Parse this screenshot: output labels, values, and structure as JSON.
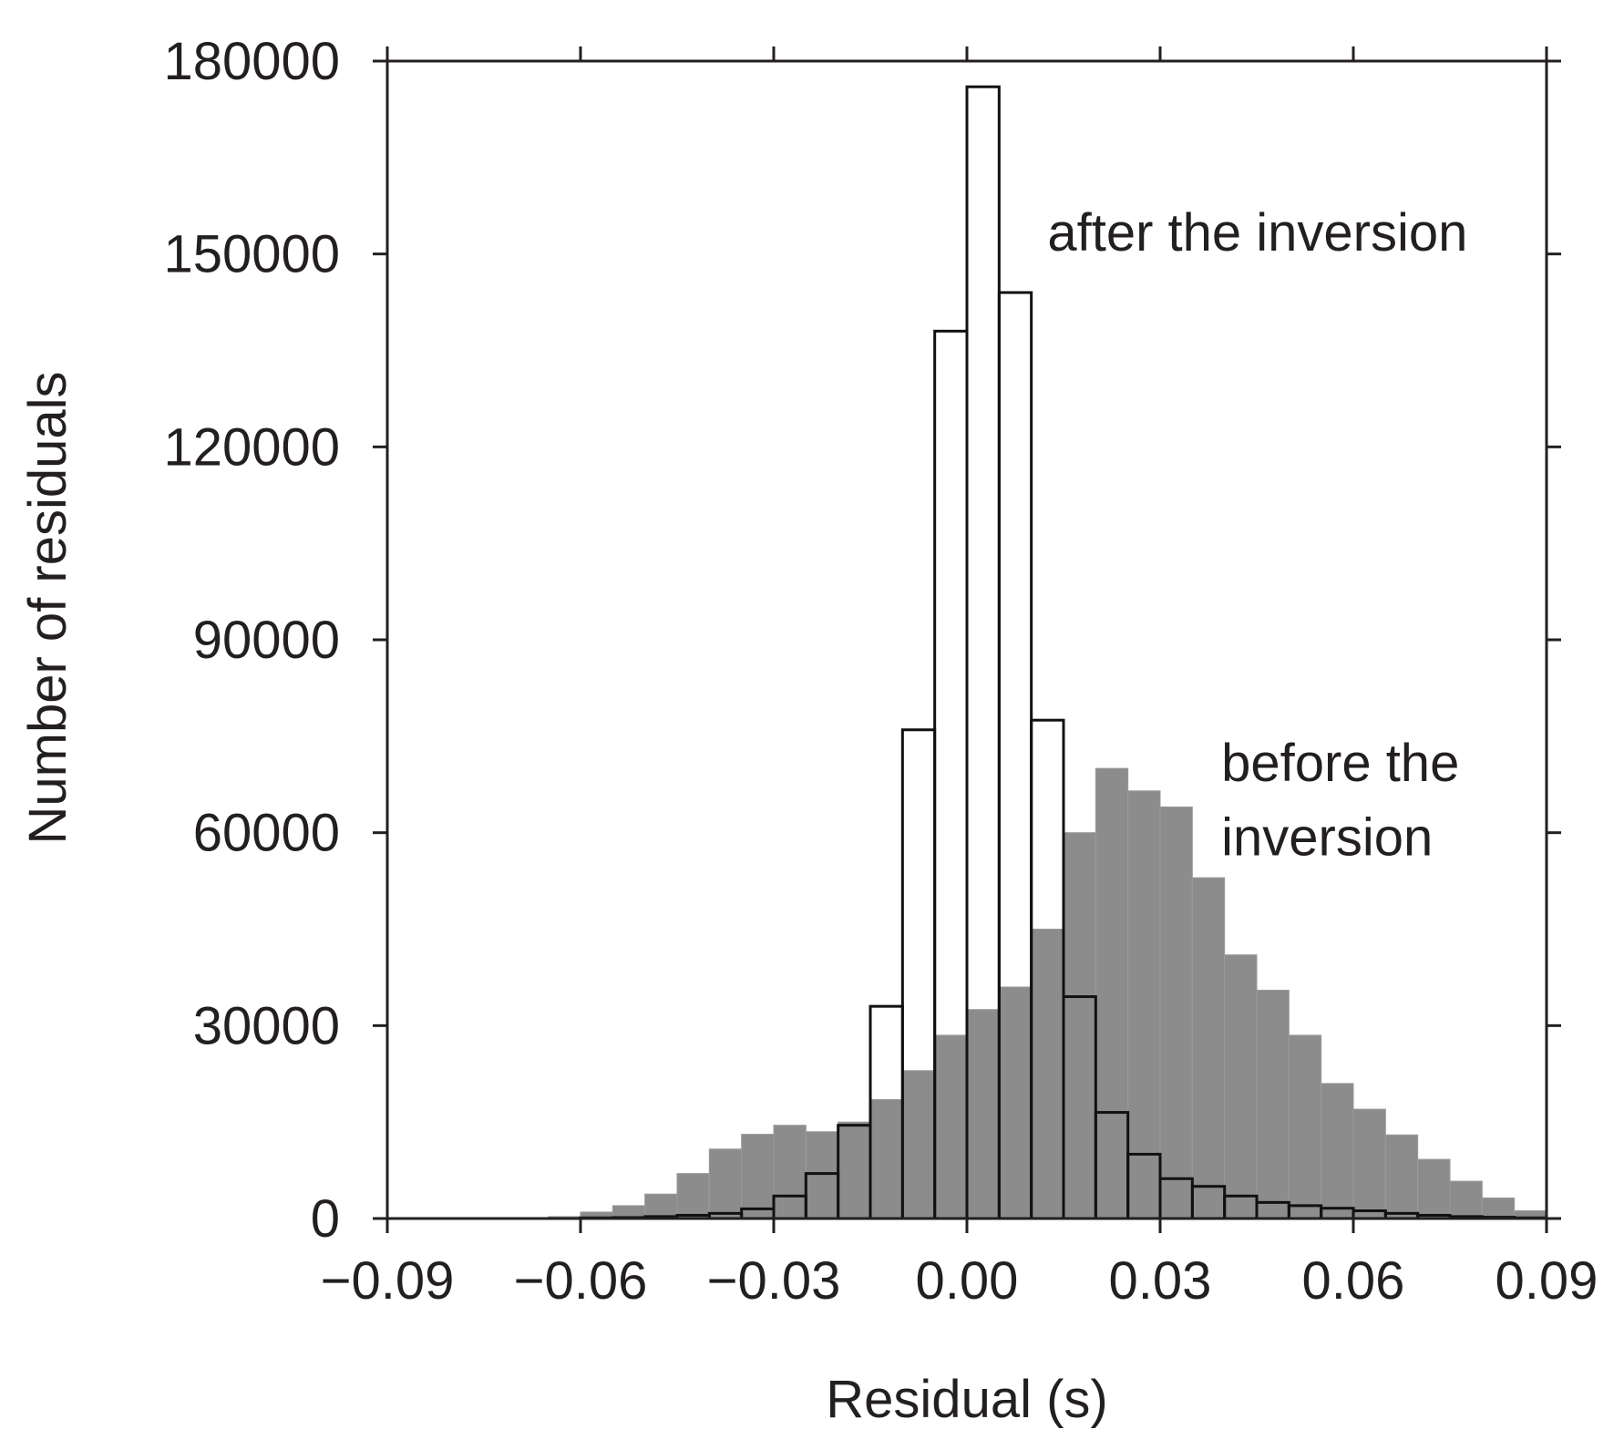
{
  "chart_data": {
    "type": "bar",
    "title": "",
    "xlabel": "Residual (s)",
    "ylabel": "Number of residuals",
    "xlim": [
      -0.09,
      0.09
    ],
    "ylim": [
      0,
      180000
    ],
    "xticks": [
      "-0.09",
      "-0.06",
      "-0.03",
      "0.00",
      "0.03",
      "0.06",
      "0.09"
    ],
    "xtick_values": [
      -0.09,
      -0.06,
      -0.03,
      0.0,
      0.03,
      0.06,
      0.09
    ],
    "yticks": [
      "0",
      "30000",
      "60000",
      "90000",
      "120000",
      "150000",
      "180000"
    ],
    "ytick_values": [
      0,
      30000,
      60000,
      90000,
      120000,
      150000,
      180000
    ],
    "bin_width": 0.005,
    "bin_centers": [
      -0.0875,
      -0.0825,
      -0.0775,
      -0.0725,
      -0.0675,
      -0.0625,
      -0.0575,
      -0.0525,
      -0.0475,
      -0.0425,
      -0.0375,
      -0.0325,
      -0.0275,
      -0.0225,
      -0.0175,
      -0.0125,
      -0.0075,
      -0.0025,
      0.0025,
      0.0075,
      0.0125,
      0.0175,
      0.0225,
      0.0275,
      0.0325,
      0.0375,
      0.0425,
      0.0475,
      0.0525,
      0.0575,
      0.0625,
      0.0675,
      0.0725,
      0.0775,
      0.0825,
      0.0875
    ],
    "grid": false,
    "series": [
      {
        "name": "before the inversion",
        "fill": "#8c8c8c",
        "values": [
          100,
          100,
          100,
          100,
          100,
          300,
          1000,
          2000,
          3800,
          7000,
          10800,
          13100,
          14500,
          13500,
          15000,
          18500,
          23000,
          28500,
          32500,
          36000,
          45000,
          60000,
          70000,
          66500,
          64000,
          53000,
          41000,
          35500,
          28500,
          21000,
          17000,
          13000,
          9200,
          5800,
          3200,
          1200
        ]
      },
      {
        "name": "after the inversion",
        "fill": "none",
        "values": [
          0,
          0,
          0,
          0,
          0,
          0,
          100,
          150,
          300,
          500,
          800,
          1500,
          3500,
          7000,
          14500,
          33000,
          76000,
          138000,
          176000,
          144000,
          77500,
          34500,
          16500,
          10000,
          6200,
          5000,
          3500,
          2500,
          2000,
          1600,
          1200,
          800,
          500,
          300,
          200,
          100
        ]
      }
    ],
    "annotations": {
      "after": "after the inversion",
      "before_line1": "before the",
      "before_line2": "inversion"
    }
  }
}
